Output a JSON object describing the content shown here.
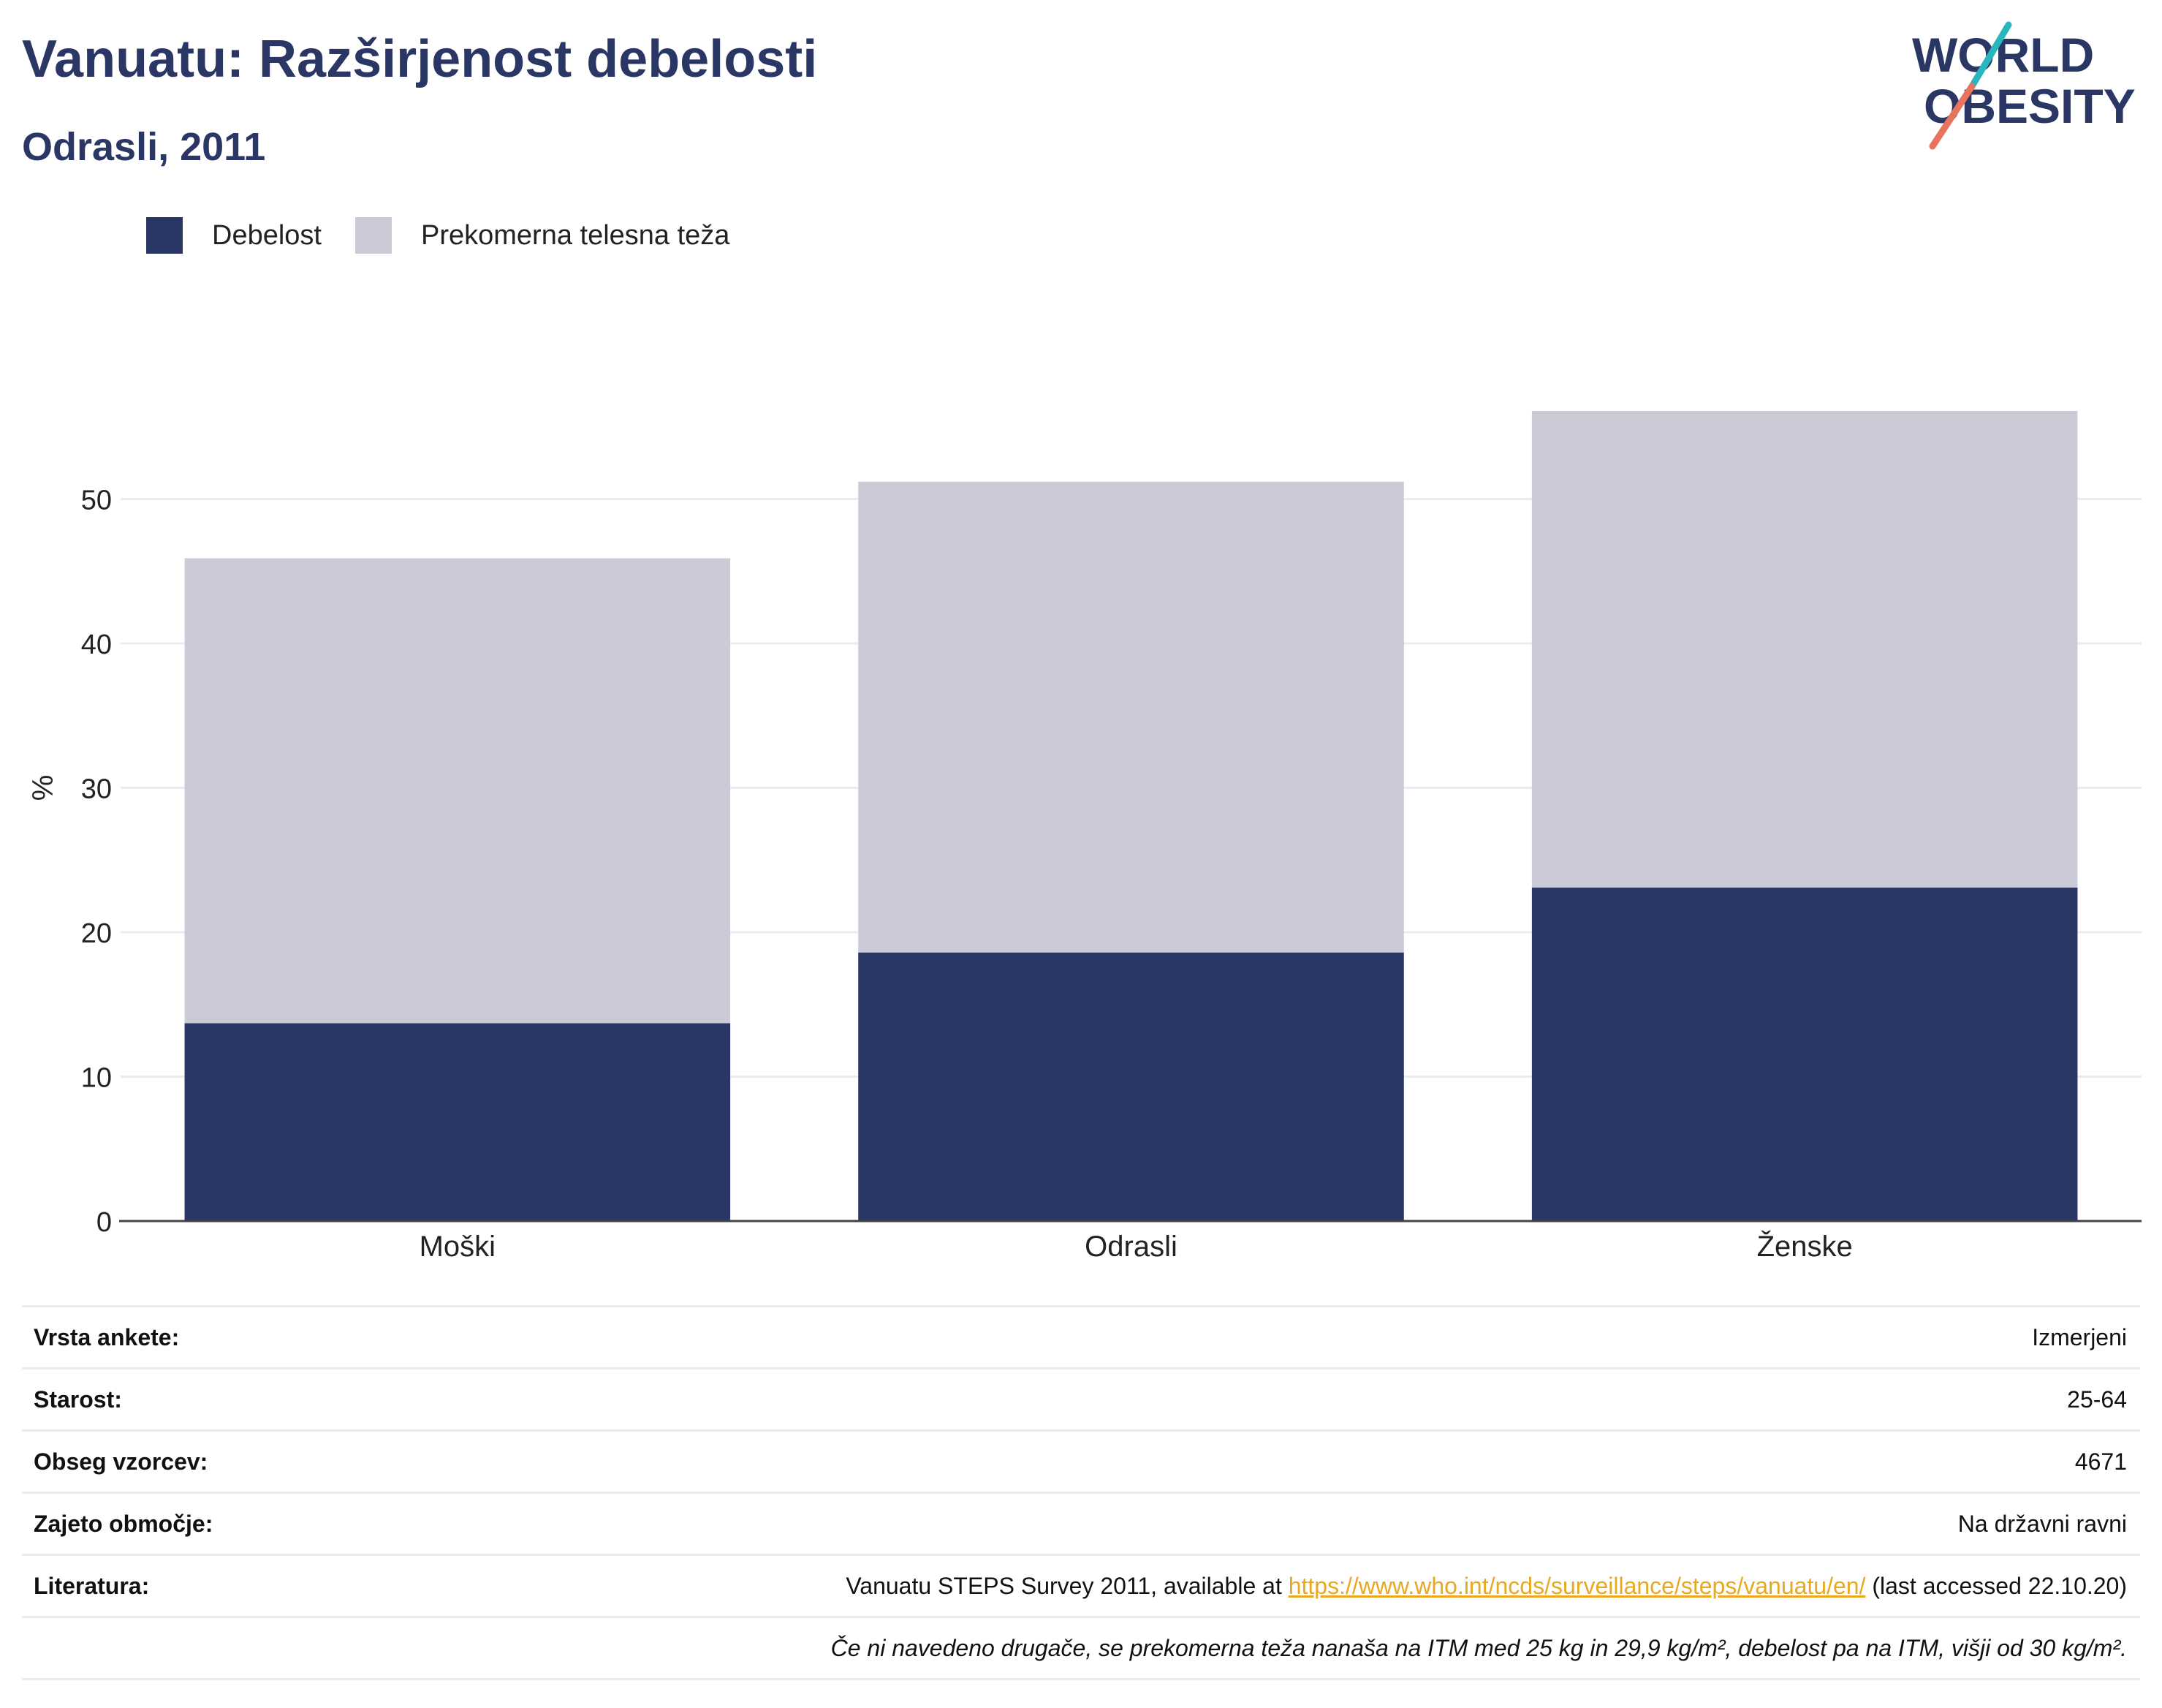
{
  "header": {
    "title": "Vanuatu: Razširjenost debelosti",
    "subtitle": "Odrasli, 2011"
  },
  "logo": {
    "line1": "WORLD",
    "line2": "OBESITY"
  },
  "colors": {
    "obesity": "#2a3664",
    "overweight": "#cacbd7",
    "text": "#2a3664",
    "grid": "#e9ecef",
    "link": "#e8a820"
  },
  "chart_data": {
    "type": "bar",
    "stacked": true,
    "categories": [
      "Moški",
      "Odrasli",
      "Ženske"
    ],
    "series": [
      {
        "name": "Debelost",
        "values": [
          13.7,
          18.6,
          23.1
        ]
      },
      {
        "name": "Prekomerna telesna teža",
        "values": [
          32.2,
          32.6,
          33.0
        ]
      }
    ],
    "ylabel": "%",
    "xlabel": "",
    "ylim": [
      0,
      60
    ],
    "yticks": [
      0,
      10,
      20,
      30,
      40,
      50
    ],
    "grid": true,
    "legend_position": "top-left"
  },
  "info": {
    "survey_type": {
      "label": "Vrsta ankete:",
      "value": "Izmerjeni"
    },
    "age": {
      "label": "Starost:",
      "value": "25-64"
    },
    "sample_size": {
      "label": "Obseg vzorcev:",
      "value": "4671"
    },
    "coverage": {
      "label": "Zajeto območje:",
      "value": "Na državni ravni"
    },
    "reference": {
      "label": "Literatura:",
      "prefix": "Vanuatu STEPS Survey 2011, available at ",
      "url": "https://www.who.int/ncds/surveillance/steps/vanuatu/en/",
      "suffix": " (last accessed 22.10.20)"
    },
    "note": "Če ni navedeno drugače, se prekomerna teža nanaša na ITM med 25 kg in 29,9 kg/m², debelost pa na ITM, višji od 30 kg/m²."
  }
}
